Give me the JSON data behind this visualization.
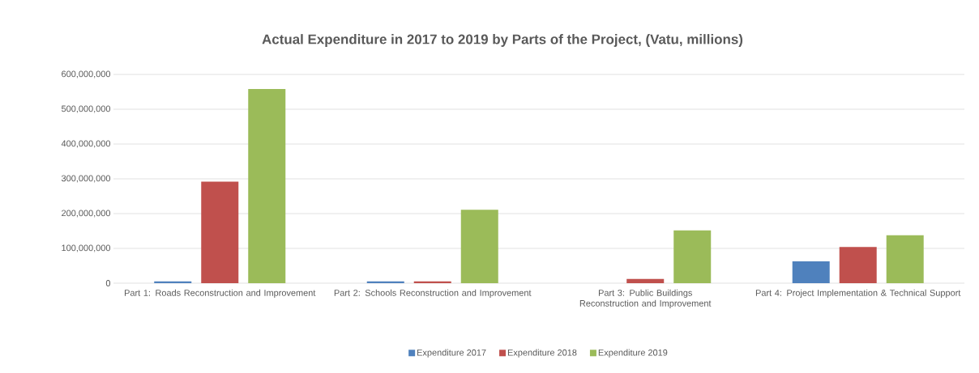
{
  "chart_data": {
    "type": "bar",
    "title": "Actual Expenditure in 2017 to 2019 by Parts of the Project, (Vatu, millions)",
    "categories": [
      "Part 1: Roads Reconstruction and Improvement",
      "Part 2: Schools Reconstruction and Improvement",
      "Part 3: Public Buildings Reconstruction and Improvement",
      "Part 4: Project Implementation & Technical Support"
    ],
    "series": [
      {
        "name": "Expenditure 2017",
        "color": "#4f81bd",
        "values": [
          5000000,
          5000000,
          0,
          63000000
        ]
      },
      {
        "name": "Expenditure 2018",
        "color": "#c0504d",
        "values": [
          292000000,
          5000000,
          12000000,
          104000000
        ]
      },
      {
        "name": "Expenditure 2019",
        "color": "#9bbb59",
        "values": [
          558000000,
          211000000,
          152000000,
          138000000
        ]
      }
    ],
    "ylim": [
      0,
      600000000
    ],
    "yticks": [
      0,
      {
        "value": 100000000,
        "label": "100,000,000"
      },
      {
        "value": 200000000,
        "label": "200,000,000"
      },
      {
        "value": 300000000,
        "label": "300,000,000"
      },
      {
        "value": 400000000,
        "label": "400,000,000"
      },
      {
        "value": 500000000,
        "label": "500,000,000"
      },
      {
        "value": 600000000,
        "label": "600,000,000"
      }
    ],
    "grid": "y",
    "legend": "bottom"
  }
}
